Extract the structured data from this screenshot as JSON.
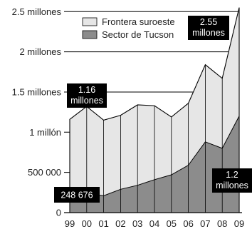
{
  "chart_data": {
    "type": "area",
    "title": "",
    "xlabel": "",
    "ylabel": "",
    "x": [
      "99",
      "00",
      "01",
      "02",
      "03",
      "04",
      "05",
      "06",
      "07",
      "08",
      "09"
    ],
    "x_numeric": [
      1999,
      2000,
      2001,
      2002,
      2003,
      2004,
      2005,
      2006,
      2007,
      2008,
      2009
    ],
    "y_ticks": [
      {
        "value": 0,
        "label": "0"
      },
      {
        "value": 500000,
        "label": "500 000"
      },
      {
        "value": 1000000,
        "label": "1 millón"
      },
      {
        "value": 1500000,
        "label": "1.5 millones"
      },
      {
        "value": 2000000,
        "label": "2 millones"
      },
      {
        "value": 2500000,
        "label": "2.5 millones"
      }
    ],
    "ylim": [
      0,
      2600000
    ],
    "grid": "horizontal",
    "legend_position": "top-left",
    "series": [
      {
        "name": "Frontera suroeste",
        "color": "#e6e6e6",
        "values": [
          1160000,
          1320000,
          1150000,
          1210000,
          1340000,
          1330000,
          1190000,
          1360000,
          1840000,
          1670000,
          2550000
        ]
      },
      {
        "name": "Sector de Tucson",
        "color": "#8c8c8c",
        "values": [
          248676,
          235000,
          210000,
          290000,
          340000,
          410000,
          470000,
          590000,
          880000,
          800000,
          1200000
        ]
      }
    ],
    "annotations": [
      {
        "lines": [
          "2.55",
          "millones"
        ],
        "x": "09",
        "y": 2550000
      },
      {
        "lines": [
          "1.16",
          "millones"
        ],
        "x": "99",
        "y": 1160000
      },
      {
        "lines": [
          "248 676"
        ],
        "x": "99",
        "y": 248676
      },
      {
        "lines": [
          "1.2",
          "millones"
        ],
        "x": "09",
        "y": 1200000
      }
    ]
  }
}
